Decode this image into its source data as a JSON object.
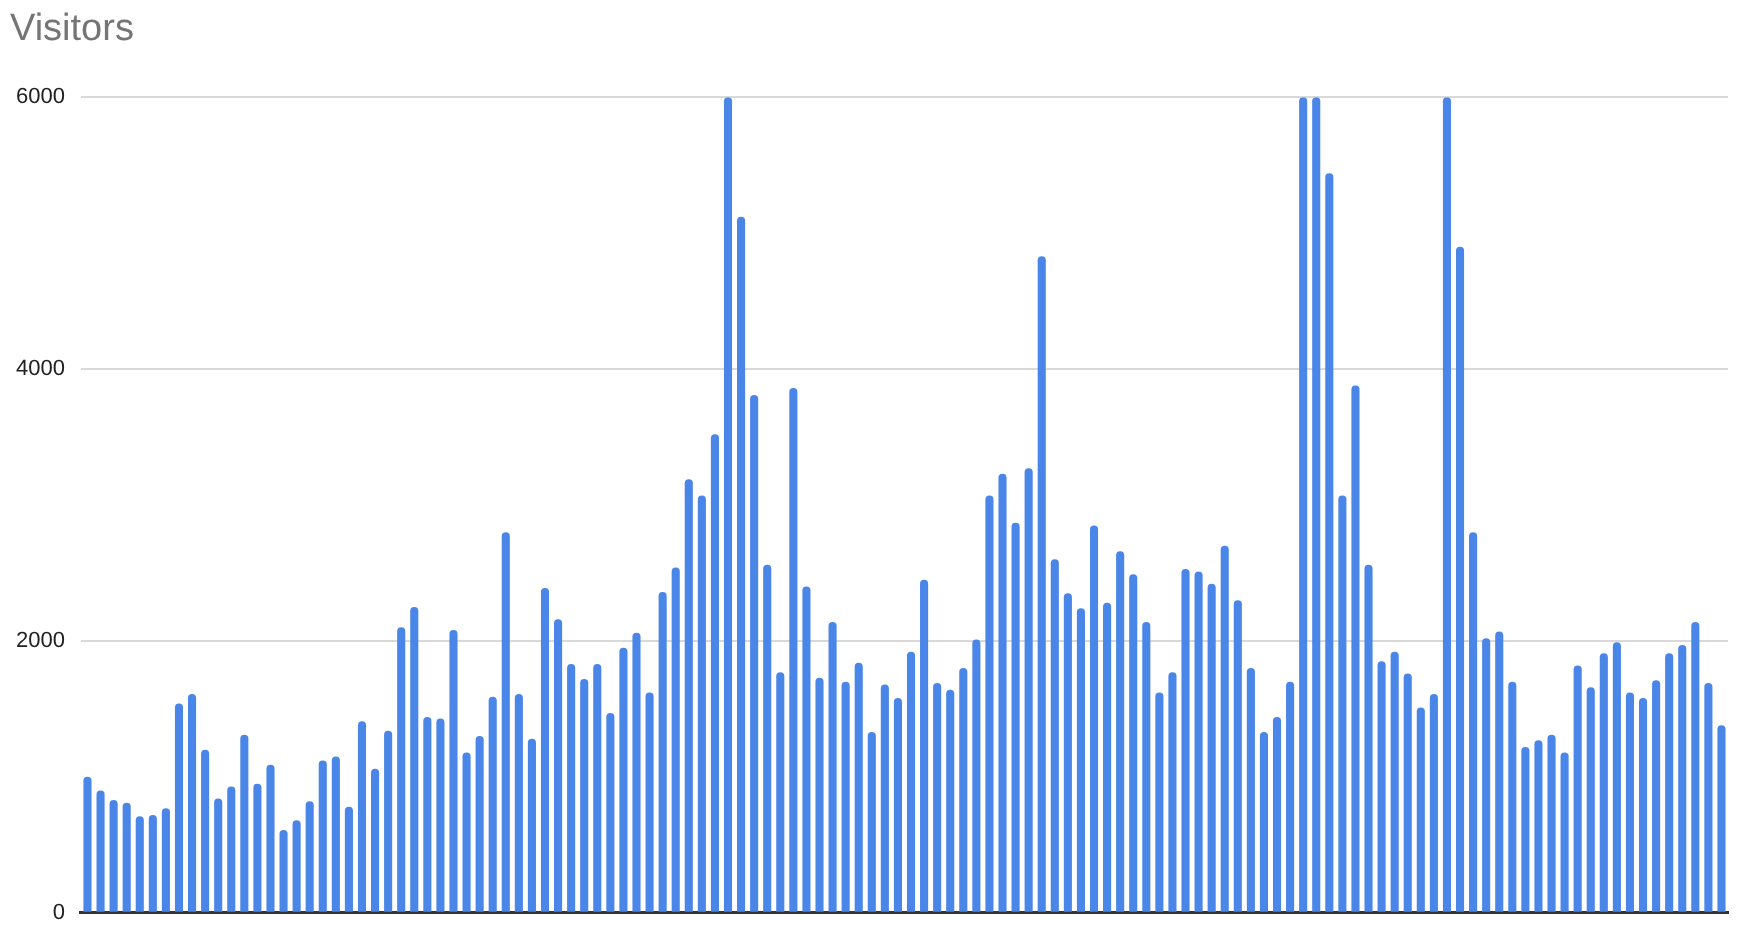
{
  "chart_data": {
    "type": "bar",
    "title": "Visitors",
    "color": "#4a86e8",
    "categories": [
      null,
      null,
      null,
      null,
      null,
      null,
      null,
      null,
      null,
      null,
      null,
      null,
      null,
      null,
      null,
      null,
      null,
      null,
      null,
      null,
      null,
      null,
      null,
      null,
      null,
      null,
      null,
      null,
      null,
      null,
      null,
      null,
      null,
      null,
      null,
      null,
      null,
      null,
      null,
      null,
      null,
      null,
      null,
      null,
      null,
      null,
      null,
      null,
      null,
      null,
      null,
      null,
      null,
      null,
      null,
      null,
      null,
      null,
      null,
      null,
      null,
      null,
      null,
      null,
      null,
      null,
      null,
      null,
      null,
      null,
      null,
      null,
      null,
      null,
      null,
      null,
      null,
      null,
      null,
      null,
      null,
      null,
      null,
      null,
      null,
      null,
      null,
      null,
      null,
      null,
      null,
      null,
      null,
      null,
      null,
      null,
      null,
      null,
      null,
      null,
      null,
      null,
      null,
      null,
      null,
      null,
      null,
      null,
      null,
      null,
      null,
      null,
      null,
      null,
      null,
      null,
      null,
      null,
      null,
      null,
      null,
      null,
      null,
      null,
      null,
      null
    ],
    "values": [
      1000,
      900,
      830,
      810,
      710,
      720,
      770,
      1540,
      1610,
      1200,
      840,
      930,
      1310,
      950,
      1090,
      610,
      680,
      820,
      1120,
      1150,
      780,
      1410,
      1060,
      1340,
      2100,
      2250,
      1440,
      1430,
      2080,
      1180,
      1300,
      1590,
      2800,
      1610,
      1280,
      2390,
      2160,
      1830,
      1720,
      1830,
      1470,
      1950,
      2060,
      1620,
      2360,
      2540,
      3190,
      3070,
      3520,
      6000,
      5120,
      3810,
      2560,
      1770,
      3860,
      2400,
      1730,
      2140,
      1700,
      1840,
      1330,
      1680,
      1580,
      1920,
      2450,
      1690,
      1640,
      1800,
      2010,
      3070,
      3230,
      2870,
      3270,
      4830,
      2600,
      2350,
      2240,
      2850,
      2280,
      2660,
      2490,
      2140,
      1620,
      1770,
      2530,
      2510,
      2420,
      2700,
      2300,
      1800,
      1330,
      1440,
      1700,
      6000,
      6000,
      5440,
      3070,
      3880,
      2560,
      1850,
      1920,
      1760,
      1510,
      1610,
      6000,
      4900,
      2800,
      2020,
      2070,
      1700,
      1220,
      1270,
      1310,
      1180,
      1820,
      1660,
      1910,
      1990,
      1620,
      1580,
      1710,
      1910,
      1970,
      2140,
      1690,
      1380
    ],
    "ylim": [
      0,
      6000
    ],
    "yticks": [
      0,
      2000,
      4000,
      6000
    ],
    "grid": "y",
    "legend": false,
    "tick_labels": "y"
  }
}
